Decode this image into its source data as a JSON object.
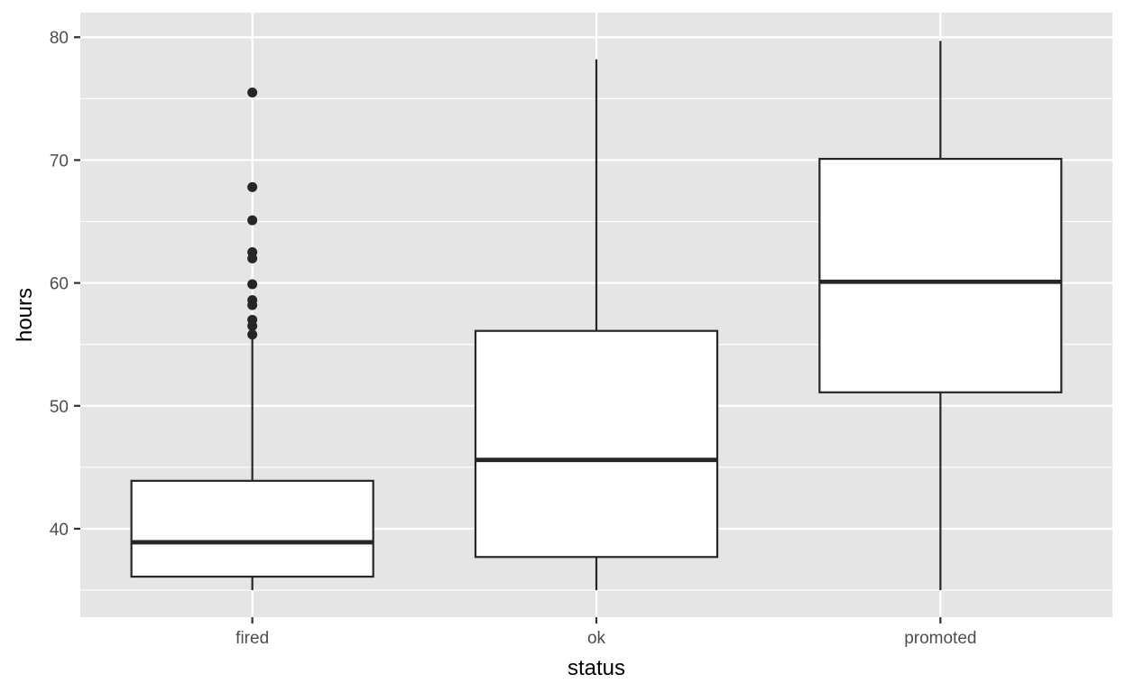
{
  "chart_data": {
    "type": "boxplot",
    "title": "",
    "xlabel": "status",
    "ylabel": "hours",
    "categories": [
      "fired",
      "ok",
      "promoted"
    ],
    "ylim": [
      32.8,
      82
    ],
    "yticks": [
      40,
      50,
      60,
      70,
      80
    ],
    "grid": true,
    "boxes": [
      {
        "category": "fired",
        "whisker_low": 35,
        "q1": 36.1,
        "median": 38.9,
        "q3": 43.9,
        "whisker_high": 55.6,
        "outliers": [
          55.8,
          56.5,
          57.0,
          58.2,
          58.6,
          59.9,
          62.0,
          62.5,
          65.1,
          67.8,
          75.5
        ]
      },
      {
        "category": "ok",
        "whisker_low": 35,
        "q1": 37.7,
        "median": 45.6,
        "q3": 56.1,
        "whisker_high": 78.2,
        "outliers": []
      },
      {
        "category": "promoted",
        "whisker_low": 35,
        "q1": 51.1,
        "median": 60.1,
        "q3": 70.1,
        "whisker_high": 79.7,
        "outliers": []
      }
    ],
    "colors": {
      "panel": "#e5e5e5",
      "grid": "#ffffff",
      "box_fill": "#ffffff",
      "stroke": "#262626",
      "tick_text": "#4d4d4d"
    }
  }
}
